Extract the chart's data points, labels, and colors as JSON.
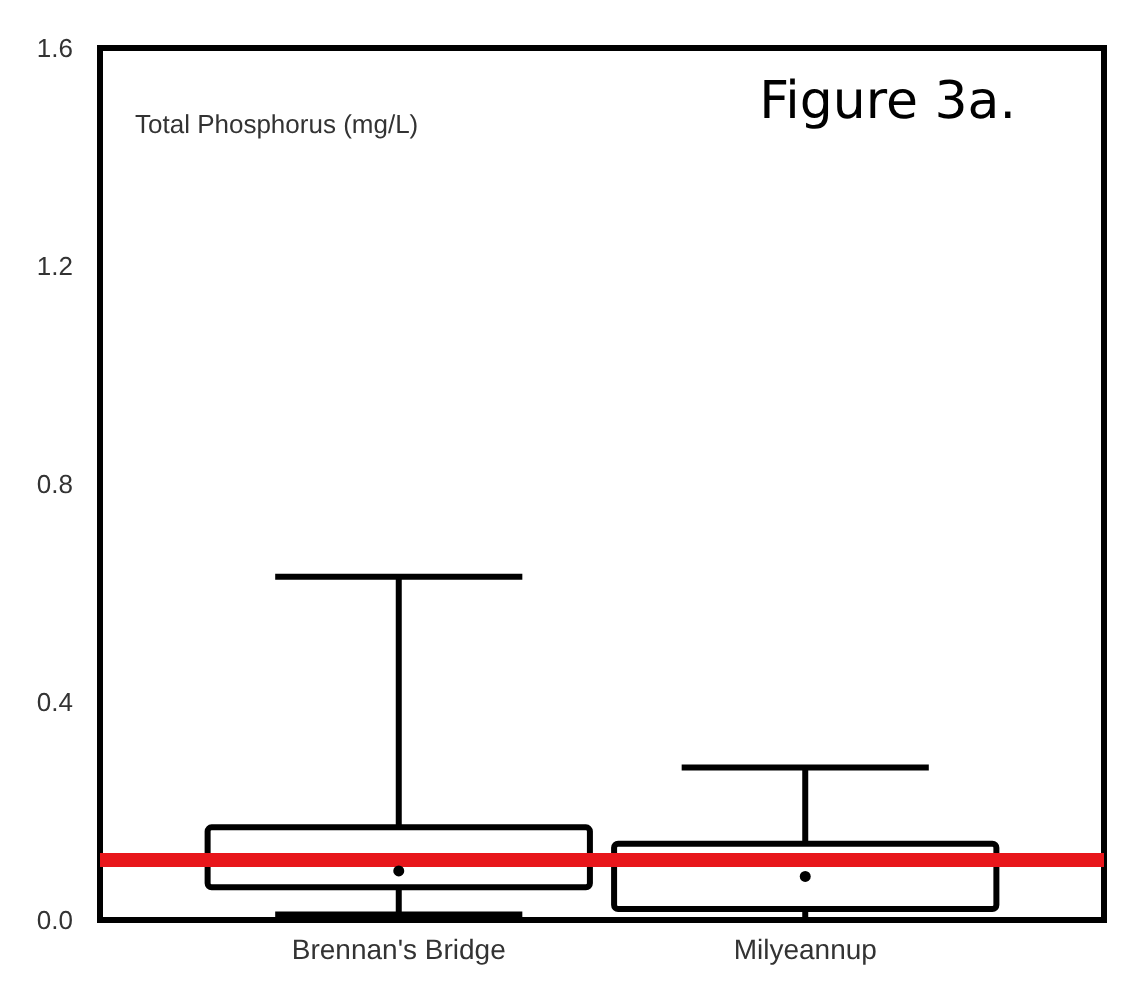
{
  "chart_data": {
    "type": "box",
    "title": "Figure 3a.",
    "ylabel": "Total Phosphorus (mg/L)",
    "categories": [
      "Brennan's Bridge",
      "Milyeannup"
    ],
    "color": "#000000",
    "boxes": [
      {
        "low": 0.01,
        "q1": 0.06,
        "median": null,
        "q3": 0.17,
        "high": 0.63,
        "mean": 0.09
      },
      {
        "low": 0.0,
        "q1": 0.02,
        "median": null,
        "q3": 0.14,
        "high": 0.28,
        "mean": 0.08
      }
    ],
    "ylim": [
      0,
      1.6
    ],
    "yticks": [
      {
        "value": 0,
        "label": "0.0"
      },
      0.4,
      0.8,
      1.2,
      1.6
    ],
    "ref_lines": [
      {
        "axis": "y",
        "value": 0.11,
        "color": "#e8161b"
      }
    ],
    "grid": false
  }
}
